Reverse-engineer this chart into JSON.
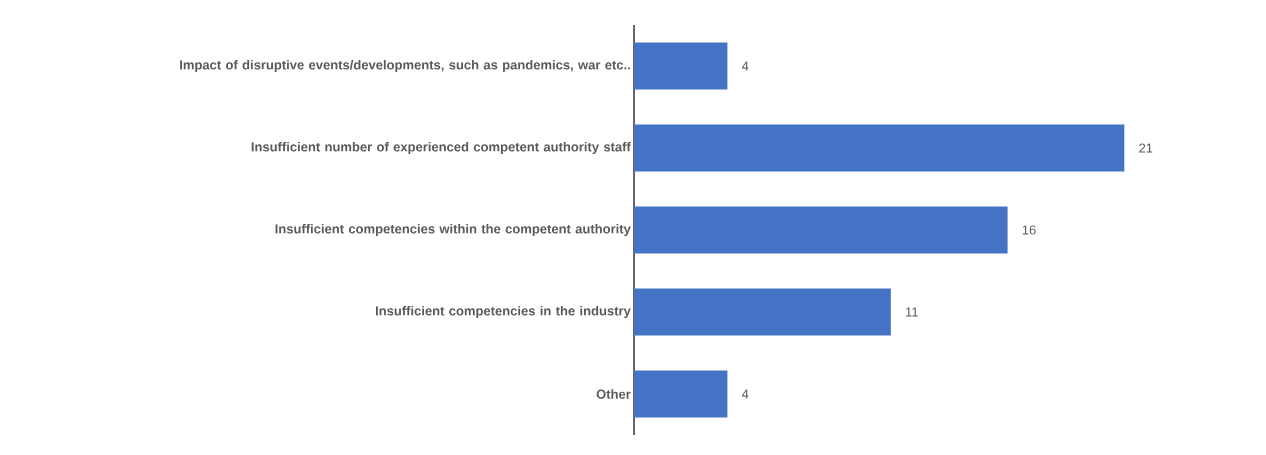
{
  "chart_data": {
    "type": "bar",
    "orientation": "horizontal",
    "categories": [
      "Impact of disruptive events/developments, such as pandemics, war etc..",
      "Insufficient number of experienced competent authority staff",
      "Insufficient competencies within the competent authority",
      "Insufficient competencies in the industry",
      "Other"
    ],
    "values": [
      4,
      21,
      16,
      11,
      4
    ],
    "color": "#4472c4",
    "data_labels": true
  }
}
